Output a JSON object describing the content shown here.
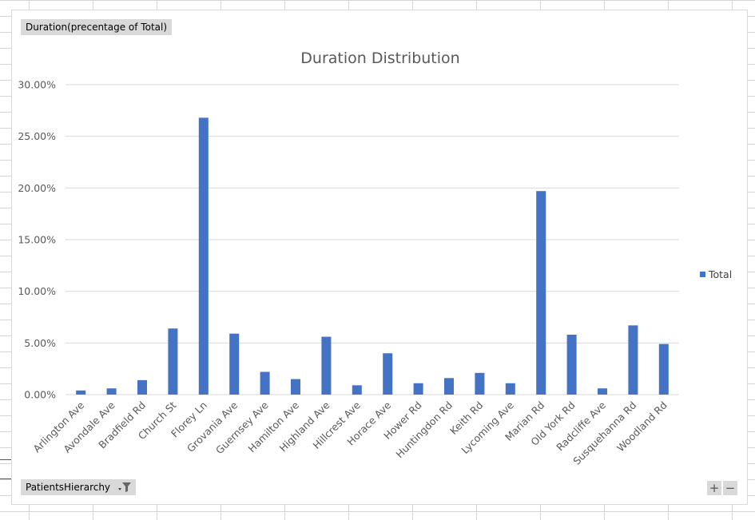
{
  "pivot": {
    "value_field": "Duration(precentage  of Total)",
    "axis_field": "PatientsHierarchy",
    "zoom_in": "+",
    "zoom_out": "−"
  },
  "chart_data": {
    "type": "bar",
    "title": "Duration Distribution",
    "xlabel": "",
    "ylabel": "",
    "ylim": [
      0,
      30
    ],
    "yticks": [
      0,
      5,
      10,
      15,
      20,
      25,
      30
    ],
    "ytick_labels": [
      "0.00%",
      "5.00%",
      "10.00%",
      "15.00%",
      "20.00%",
      "25.00%",
      "30.00%"
    ],
    "grid": true,
    "legend_position": "right",
    "categories": [
      "Arlington Ave",
      "Avondale Ave",
      "Bradfield Rd",
      "Church St",
      "Florey Ln",
      "Grovania Ave",
      "Guernsey Ave",
      "Hamilton Ave",
      "Highland Ave",
      "Hillcrest Ave",
      "Horace Ave",
      "Hower Rd",
      "Huntingdon Rd",
      "Keith Rd",
      "Lycoming Ave",
      "Marian Rd",
      "Old York Rd",
      "Radcliffe Ave",
      "Susquehanna Rd",
      "Woodland Rd"
    ],
    "series": [
      {
        "name": "Total",
        "color": "#4472c4",
        "values": [
          0.4,
          0.6,
          1.4,
          6.4,
          26.8,
          5.9,
          2.2,
          1.5,
          5.6,
          0.9,
          4.0,
          1.1,
          1.6,
          2.1,
          1.1,
          19.7,
          5.8,
          0.6,
          6.7,
          4.9
        ]
      }
    ]
  }
}
